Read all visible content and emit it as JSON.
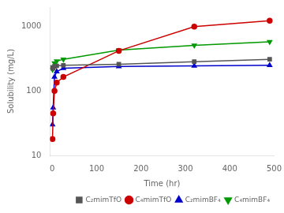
{
  "chart_data": {
    "type": "line",
    "x_label": "Time (hr)",
    "y_label": "Solubility (mg/L)",
    "series": [
      {
        "name": "C₂mimTfO",
        "color": "#555555",
        "marker": "square",
        "x": [
          0.5,
          2,
          5,
          10,
          25,
          150,
          320,
          490
        ],
        "values": [
          230,
          225,
          240,
          245,
          250,
          260,
          285,
          310
        ]
      },
      {
        "name": "C₄mimTfO",
        "color": "#cc0000",
        "marker": "circle",
        "x": [
          0.5,
          2,
          5,
          10,
          25,
          150,
          320,
          490
        ],
        "values": [
          18,
          45,
          100,
          135,
          165,
          420,
          995,
          1230
        ]
      },
      {
        "name": "C₂mimBF₄",
        "color": "#0000cc",
        "marker": "triangle-up",
        "x": [
          0.5,
          2,
          5,
          10,
          25,
          150,
          320,
          490
        ],
        "values": [
          30,
          55,
          165,
          200,
          225,
          240,
          245,
          250
        ]
      },
      {
        "name": "C₄mimBF₄",
        "color": "#009900",
        "marker": "triangle-down",
        "x": [
          0.5,
          2,
          5,
          10,
          25,
          150,
          320,
          490
        ],
        "values": [
          215,
          235,
          270,
          290,
          310,
          430,
          510,
          580
        ]
      }
    ],
    "xlim": [
      -5,
      500
    ],
    "xticks": [
      0,
      100,
      200,
      300,
      400,
      500
    ],
    "ylim": [
      10,
      2000
    ],
    "yticks": [
      10,
      100,
      1000
    ],
    "log": "y",
    "grid": false,
    "legend": "lower right"
  }
}
